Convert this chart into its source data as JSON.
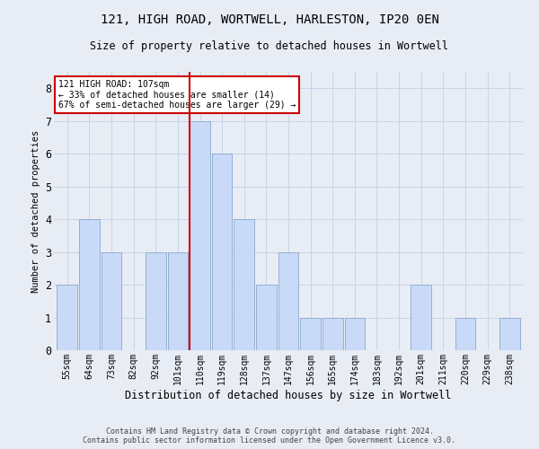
{
  "title_line1": "121, HIGH ROAD, WORTWELL, HARLESTON, IP20 0EN",
  "title_line2": "Size of property relative to detached houses in Wortwell",
  "xlabel": "Distribution of detached houses by size in Wortwell",
  "ylabel": "Number of detached properties",
  "categories": [
    "55sqm",
    "64sqm",
    "73sqm",
    "82sqm",
    "92sqm",
    "101sqm",
    "110sqm",
    "119sqm",
    "128sqm",
    "137sqm",
    "147sqm",
    "156sqm",
    "165sqm",
    "174sqm",
    "183sqm",
    "192sqm",
    "201sqm",
    "211sqm",
    "220sqm",
    "229sqm",
    "238sqm"
  ],
  "values": [
    2,
    4,
    3,
    0,
    3,
    3,
    7,
    6,
    4,
    2,
    3,
    1,
    1,
    1,
    0,
    0,
    2,
    0,
    1,
    0,
    1
  ],
  "bar_color": "#c9daf8",
  "bar_edgecolor": "#89a8cc",
  "highlight_index": 6,
  "highlight_line_color": "#cc0000",
  "annotation_text": "121 HIGH ROAD: 107sqm\n← 33% of detached houses are smaller (14)\n67% of semi-detached houses are larger (29) →",
  "annotation_box_color": "#ffffff",
  "annotation_box_edgecolor": "#cc0000",
  "ylim": [
    0,
    8.5
  ],
  "yticks": [
    0,
    1,
    2,
    3,
    4,
    5,
    6,
    7,
    8
  ],
  "grid_color": "#c8d4e8",
  "background_color": "#e8edf5",
  "footer_line1": "Contains HM Land Registry data © Crown copyright and database right 2024.",
  "footer_line2": "Contains public sector information licensed under the Open Government Licence v3.0."
}
